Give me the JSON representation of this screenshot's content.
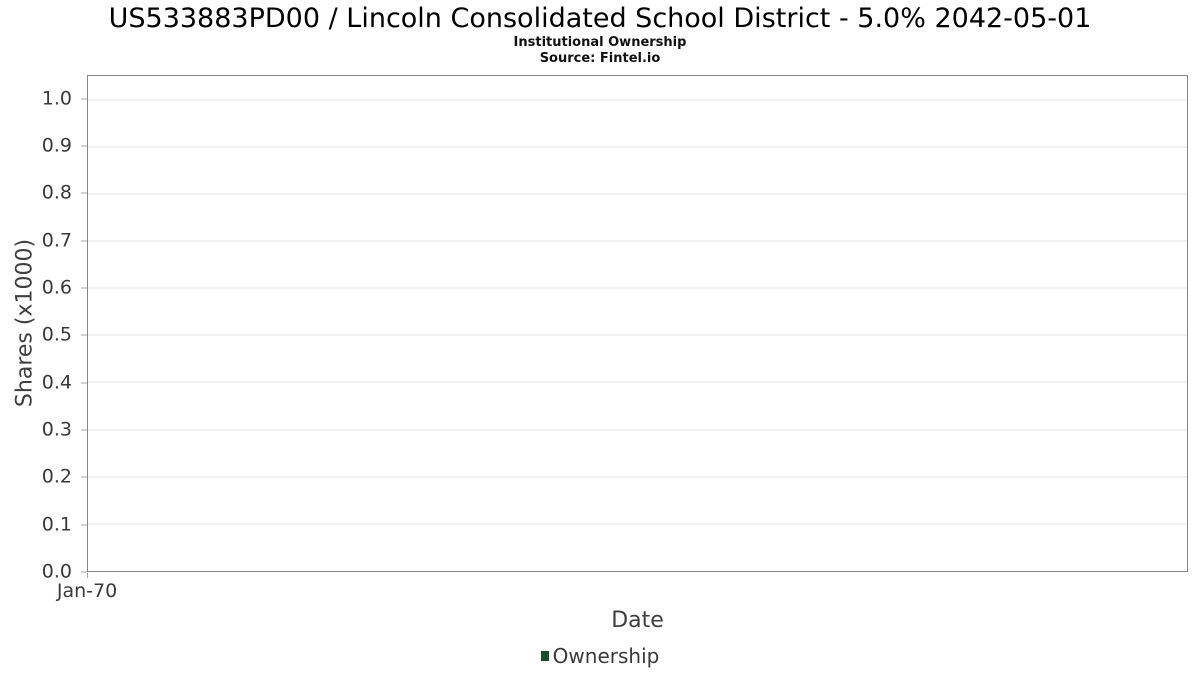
{
  "chart": {
    "title": "US533883PD00 / Lincoln Consolidated School District - 5.0% 2042-05-01",
    "subtitle": "Institutional Ownership",
    "source": "Source: Fintel.io",
    "ylabel": "Shares (x1000)",
    "xlabel": "Date",
    "y_ticks": [
      "1.0",
      "0.9",
      "0.8",
      "0.7",
      "0.6",
      "0.5",
      "0.4",
      "0.3",
      "0.2",
      "0.1",
      "0.0"
    ],
    "x_ticks": [
      "Jan-70"
    ],
    "legend": {
      "label": "Ownership",
      "color": "#1d4b2c"
    },
    "colors": {
      "border": "#878787",
      "gridline": "#e6e6e6",
      "tick_mark": "#aaaaaa",
      "tick_text": "#3a3a3a",
      "axis_text": "#3f3f3f",
      "title_text": "#000000"
    }
  },
  "chart_data": {
    "type": "line",
    "title": "US533883PD00 / Lincoln Consolidated School District - 5.0% 2042-05-01",
    "subtitle": "Institutional Ownership",
    "source": "Source: Fintel.io",
    "xlabel": "Date",
    "ylabel": "Shares (x1000)",
    "x_tick_labels": [
      "Jan-70"
    ],
    "ylim": [
      0,
      1.05
    ],
    "y_tick_step": 0.1,
    "grid": true,
    "legend_position": "bottom-center",
    "series": [
      {
        "name": "Ownership",
        "color": "#1d4b2c",
        "x": [],
        "values": []
      }
    ]
  }
}
